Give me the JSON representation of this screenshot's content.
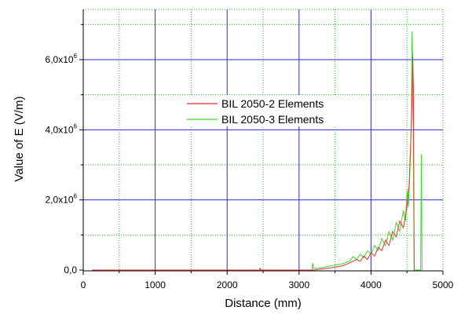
{
  "chart_data": {
    "type": "line",
    "title": "",
    "xlabel": "Distance (mm)",
    "ylabel": "Value of E (V/m)",
    "xlim": [
      0,
      5000
    ],
    "ylim": [
      -100000,
      7500000
    ],
    "x_ticks": [
      {
        "value": 0,
        "label": "0"
      },
      {
        "value": 1000,
        "label": "1000"
      },
      {
        "value": 2000,
        "label": "2000"
      },
      {
        "value": 3000,
        "label": "3000"
      },
      {
        "value": 4000,
        "label": "4000"
      },
      {
        "value": 5000,
        "label": "5000"
      }
    ],
    "y_ticks": [
      {
        "value": 0,
        "label": "0,0"
      },
      {
        "value": 2000000,
        "label": "2,0x10",
        "exp": "6"
      },
      {
        "value": 4000000,
        "label": "4,0x10",
        "exp": "6"
      },
      {
        "value": 6000000,
        "label": "6,0x10",
        "exp": "6"
      }
    ],
    "grid": {
      "major": "blue solid",
      "minor": "green dotted"
    },
    "legend_position": "center",
    "series": [
      {
        "name": "BIL 2050-2 Elements",
        "color": "#e8332f",
        "points": [
          [
            120,
            0
          ],
          [
            1000,
            0
          ],
          [
            2000,
            0
          ],
          [
            2450,
            0
          ],
          [
            2460,
            50000
          ],
          [
            2470,
            0
          ],
          [
            2700,
            0
          ],
          [
            3000,
            0
          ],
          [
            3200,
            0
          ],
          [
            3400,
            50000
          ],
          [
            3500,
            80000
          ],
          [
            3600,
            120000
          ],
          [
            3700,
            200000
          ],
          [
            3800,
            300000
          ],
          [
            3850,
            250000
          ],
          [
            3900,
            400000
          ],
          [
            3950,
            300000
          ],
          [
            4000,
            500000
          ],
          [
            4050,
            400000
          ],
          [
            4100,
            650000
          ],
          [
            4150,
            550000
          ],
          [
            4200,
            850000
          ],
          [
            4250,
            700000
          ],
          [
            4300,
            1100000
          ],
          [
            4350,
            950000
          ],
          [
            4400,
            1400000
          ],
          [
            4450,
            1200000
          ],
          [
            4500,
            1800000
          ],
          [
            4530,
            2400000
          ],
          [
            4550,
            3500000
          ],
          [
            4570,
            4800000
          ],
          [
            4580,
            6100000
          ],
          [
            4590,
            5200000
          ],
          [
            4600,
            0
          ]
        ]
      },
      {
        "name": "BIL 2050-3 Elements",
        "color": "#3cdc2c",
        "points": [
          [
            120,
            0
          ],
          [
            1000,
            0
          ],
          [
            1500,
            0
          ],
          [
            2000,
            0
          ],
          [
            2500,
            0
          ],
          [
            3000,
            0
          ],
          [
            3180,
            0
          ],
          [
            3190,
            200000
          ],
          [
            3200,
            50000
          ],
          [
            3300,
            60000
          ],
          [
            3400,
            100000
          ],
          [
            3500,
            140000
          ],
          [
            3600,
            180000
          ],
          [
            3700,
            250000
          ],
          [
            3750,
            380000
          ],
          [
            3800,
            300000
          ],
          [
            3850,
            450000
          ],
          [
            3900,
            350000
          ],
          [
            3950,
            550000
          ],
          [
            4000,
            450000
          ],
          [
            4050,
            700000
          ],
          [
            4100,
            550000
          ],
          [
            4150,
            900000
          ],
          [
            4200,
            700000
          ],
          [
            4250,
            1100000
          ],
          [
            4300,
            850000
          ],
          [
            4350,
            1350000
          ],
          [
            4400,
            1100000
          ],
          [
            4450,
            1700000
          ],
          [
            4480,
            1400000
          ],
          [
            4500,
            2300000
          ],
          [
            4520,
            1800000
          ],
          [
            4540,
            2800000
          ],
          [
            4560,
            4200000
          ],
          [
            4570,
            6800000
          ],
          [
            4580,
            6000000
          ],
          [
            4600,
            0
          ],
          [
            4690,
            0
          ],
          [
            4700,
            3300000
          ],
          [
            4710,
            0
          ]
        ]
      }
    ]
  }
}
